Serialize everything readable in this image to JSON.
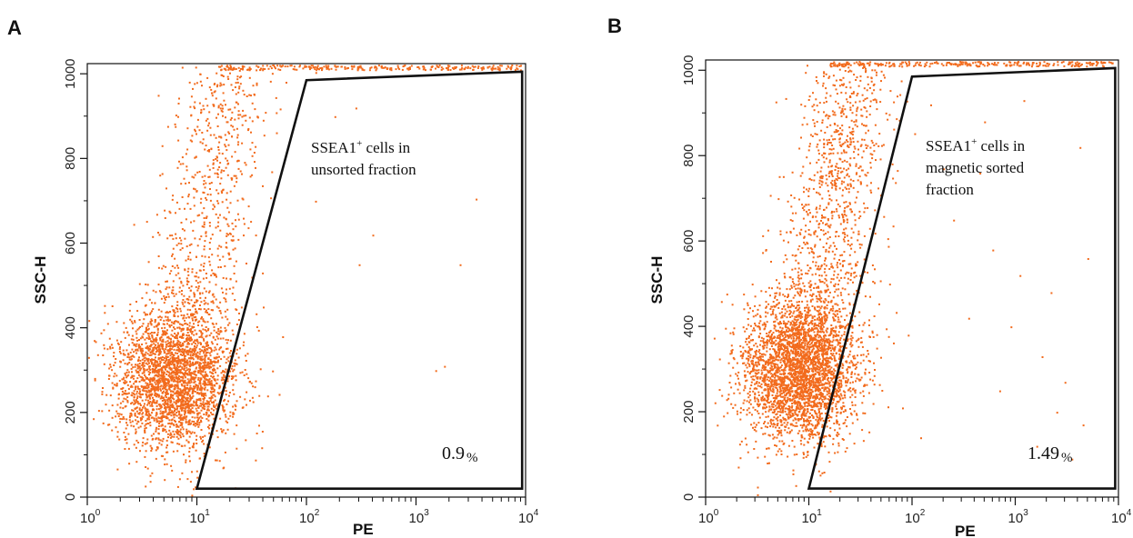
{
  "chart_data": [
    {
      "type": "scatter",
      "panel": "A",
      "xlabel": "PE",
      "ylabel": "SSC-H",
      "x_scale": "log",
      "xlim": [
        1,
        10000
      ],
      "ylim": [
        0,
        1024
      ],
      "x_ticks": [
        {
          "base": "10",
          "exp": "0"
        },
        {
          "base": "10",
          "exp": "1"
        },
        {
          "base": "10",
          "exp": "2"
        },
        {
          "base": "10",
          "exp": "3"
        },
        {
          "base": "10",
          "exp": "4"
        }
      ],
      "y_ticks": [
        "0",
        "200",
        "400",
        "600",
        "800",
        "1000"
      ],
      "point_color": "#f26b1d",
      "gate": {
        "vertices": [
          [
            10,
            20
          ],
          [
            100,
            985
          ],
          [
            9300,
            1005
          ],
          [
            9300,
            20
          ]
        ],
        "label_lines": [
          "SSEA1",
          "+",
          " cells in",
          "unsorted fraction"
        ],
        "percent": "0.9",
        "percent_sign": "%"
      },
      "population": {
        "main_center_x": 6,
        "main_center_y": 280,
        "events_main": 2600,
        "events_tail": 900,
        "events_gate_sample": [
          [
            180,
            900
          ],
          [
            280,
            920
          ],
          [
            120,
            700
          ],
          [
            400,
            620
          ],
          [
            300,
            550
          ],
          [
            2500,
            550
          ],
          [
            1500,
            300
          ],
          [
            1800,
            310
          ],
          [
            40,
            450
          ],
          [
            60,
            380
          ],
          [
            30,
            230
          ],
          [
            3500,
            705
          ]
        ]
      }
    },
    {
      "type": "scatter",
      "panel": "B",
      "xlabel": "PE",
      "ylabel": "SSC-H",
      "x_scale": "log",
      "xlim": [
        1,
        10000
      ],
      "ylim": [
        0,
        1024
      ],
      "x_ticks": [
        {
          "base": "10",
          "exp": "0"
        },
        {
          "base": "10",
          "exp": "1"
        },
        {
          "base": "10",
          "exp": "2"
        },
        {
          "base": "10",
          "exp": "3"
        },
        {
          "base": "10",
          "exp": "4"
        }
      ],
      "y_ticks": [
        "0",
        "200",
        "400",
        "600",
        "800",
        "1000"
      ],
      "point_color": "#f26b1d",
      "gate": {
        "vertices": [
          [
            10,
            20
          ],
          [
            100,
            985
          ],
          [
            9300,
            1005
          ],
          [
            9300,
            20
          ]
        ],
        "label_lines": [
          "SSEA1",
          "+",
          " cells in",
          "magnetic sorted",
          "fraction"
        ],
        "percent": "1.49",
        "percent_sign": "%"
      },
      "population": {
        "main_center_x": 8,
        "main_center_y": 300,
        "events_main": 3000,
        "events_tail": 1300,
        "events_gate_sample": [
          [
            150,
            920
          ],
          [
            500,
            880
          ],
          [
            1200,
            930
          ],
          [
            250,
            650
          ],
          [
            600,
            580
          ],
          [
            1100,
            520
          ],
          [
            2200,
            480
          ],
          [
            5000,
            560
          ],
          [
            350,
            420
          ],
          [
            900,
            400
          ],
          [
            1800,
            330
          ],
          [
            3000,
            270
          ],
          [
            700,
            250
          ],
          [
            2500,
            200
          ],
          [
            4500,
            170
          ],
          [
            1600,
            120
          ],
          [
            3500,
            90
          ],
          [
            200,
            770
          ],
          [
            450,
            760
          ],
          [
            4200,
            820
          ],
          [
            60,
            500
          ],
          [
            45,
            350
          ],
          [
            80,
            210
          ],
          [
            120,
            140
          ]
        ]
      }
    }
  ]
}
